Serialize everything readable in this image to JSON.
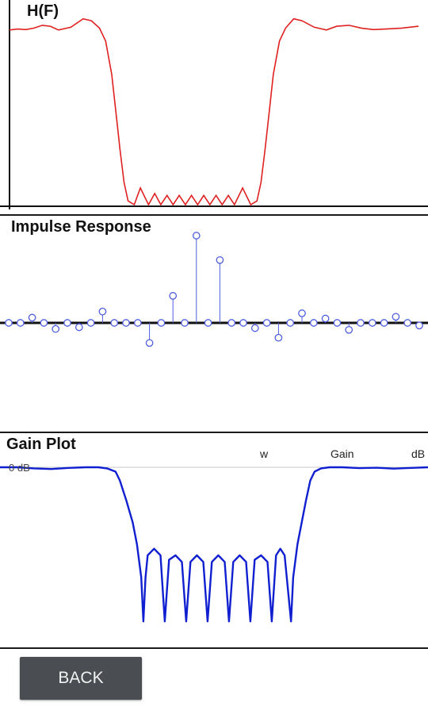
{
  "colors": {
    "hf_line": "#e02020",
    "impulse": "#4f5fe0",
    "gain_line": "#1020d0",
    "axis": "#111111"
  },
  "hf_plot": {
    "title": "H(F)",
    "chart_data": {
      "type": "line",
      "title": "H(F)",
      "series": [
        {
          "color": "#e02020",
          "points": [
            [
              0.0,
              0.94
            ],
            [
              0.02,
              0.945
            ],
            [
              0.04,
              0.942
            ],
            [
              0.06,
              0.95
            ],
            [
              0.08,
              0.965
            ],
            [
              0.1,
              0.96
            ],
            [
              0.12,
              0.94
            ],
            [
              0.15,
              0.955
            ],
            [
              0.18,
              1.0
            ],
            [
              0.2,
              0.99
            ],
            [
              0.22,
              0.95
            ],
            [
              0.235,
              0.88
            ],
            [
              0.25,
              0.7
            ],
            [
              0.26,
              0.5
            ],
            [
              0.27,
              0.3
            ],
            [
              0.28,
              0.12
            ],
            [
              0.29,
              0.02
            ],
            [
              0.305,
              0.0
            ],
            [
              0.32,
              0.09
            ],
            [
              0.34,
              0.0
            ],
            [
              0.355,
              0.06
            ],
            [
              0.37,
              0.0
            ],
            [
              0.385,
              0.05
            ],
            [
              0.4,
              0.0
            ],
            [
              0.415,
              0.05
            ],
            [
              0.43,
              0.0
            ],
            [
              0.445,
              0.05
            ],
            [
              0.46,
              0.0
            ],
            [
              0.475,
              0.05
            ],
            [
              0.49,
              0.0
            ],
            [
              0.505,
              0.05
            ],
            [
              0.52,
              0.0
            ],
            [
              0.535,
              0.05
            ],
            [
              0.55,
              0.0
            ],
            [
              0.57,
              0.09
            ],
            [
              0.59,
              0.0
            ],
            [
              0.605,
              0.02
            ],
            [
              0.615,
              0.12
            ],
            [
              0.625,
              0.3
            ],
            [
              0.635,
              0.5
            ],
            [
              0.645,
              0.7
            ],
            [
              0.66,
              0.88
            ],
            [
              0.675,
              0.95
            ],
            [
              0.695,
              1.0
            ],
            [
              0.715,
              0.99
            ],
            [
              0.745,
              0.955
            ],
            [
              0.775,
              0.94
            ],
            [
              0.8,
              0.96
            ],
            [
              0.83,
              0.965
            ],
            [
              0.86,
              0.95
            ],
            [
              0.89,
              0.942
            ],
            [
              0.92,
              0.945
            ],
            [
              0.96,
              0.95
            ],
            [
              1.0,
              0.96
            ]
          ]
        }
      ],
      "xlim": [
        0,
        1
      ],
      "ylim": [
        0,
        1.05
      ]
    }
  },
  "impulse_plot": {
    "title": "Impulse Response",
    "chart_data": {
      "type": "scatter",
      "title": "Impulse Response",
      "series": [
        {
          "color": "#4f5fe0",
          "values": [
            0.0,
            0.0,
            0.06,
            0.0,
            -0.07,
            0.0,
            -0.05,
            0.0,
            0.13,
            0.0,
            0.0,
            0.0,
            -0.23,
            0.0,
            0.31,
            0.0,
            1.0,
            0.0,
            0.72,
            0.0,
            0.0,
            -0.06,
            0.0,
            -0.17,
            0.0,
            0.11,
            0.0,
            0.05,
            0.0,
            -0.08,
            0.0,
            0.0,
            0.0,
            0.07,
            0.0,
            -0.03
          ]
        }
      ],
      "ylim": [
        -1,
        1
      ]
    }
  },
  "gain_plot": {
    "title": "Gain Plot",
    "col_w": "w",
    "col_gain": "Gain",
    "col_db": "dB",
    "zero_label": "0 dB",
    "chart_data": {
      "type": "line",
      "title": "Gain Plot",
      "series": [
        {
          "color": "#1020d0",
          "points": [
            [
              0.0,
              0.0
            ],
            [
              0.04,
              0.0
            ],
            [
              0.08,
              -0.5
            ],
            [
              0.12,
              -0.8
            ],
            [
              0.16,
              -0.3
            ],
            [
              0.2,
              0.0
            ],
            [
              0.23,
              0.0
            ],
            [
              0.25,
              -0.5
            ],
            [
              0.27,
              -2
            ],
            [
              0.28,
              -6
            ],
            [
              0.295,
              -15
            ],
            [
              0.31,
              -25
            ],
            [
              0.32,
              -35
            ],
            [
              0.33,
              -50
            ],
            [
              0.335,
              -70
            ],
            [
              0.34,
              -50
            ],
            [
              0.345,
              -40
            ],
            [
              0.36,
              -37
            ],
            [
              0.375,
              -40
            ],
            [
              0.385,
              -70
            ],
            [
              0.395,
              -42
            ],
            [
              0.41,
              -40
            ],
            [
              0.425,
              -43
            ],
            [
              0.435,
              -70
            ],
            [
              0.445,
              -43
            ],
            [
              0.46,
              -40
            ],
            [
              0.475,
              -43
            ],
            [
              0.485,
              -70
            ],
            [
              0.495,
              -43
            ],
            [
              0.51,
              -40
            ],
            [
              0.525,
              -43
            ],
            [
              0.535,
              -70
            ],
            [
              0.545,
              -43
            ],
            [
              0.56,
              -40
            ],
            [
              0.575,
              -43
            ],
            [
              0.585,
              -70
            ],
            [
              0.595,
              -42
            ],
            [
              0.61,
              -40
            ],
            [
              0.625,
              -43
            ],
            [
              0.635,
              -70
            ],
            [
              0.645,
              -40
            ],
            [
              0.655,
              -37
            ],
            [
              0.665,
              -40
            ],
            [
              0.67,
              -50
            ],
            [
              0.68,
              -70
            ],
            [
              0.685,
              -50
            ],
            [
              0.695,
              -35
            ],
            [
              0.705,
              -25
            ],
            [
              0.715,
              -15
            ],
            [
              0.725,
              -6
            ],
            [
              0.735,
              -2
            ],
            [
              0.75,
              -0.5
            ],
            [
              0.77,
              0.0
            ],
            [
              0.8,
              0.0
            ],
            [
              0.84,
              -0.4
            ],
            [
              0.88,
              -0.2
            ],
            [
              0.92,
              -0.6
            ],
            [
              0.96,
              -0.3
            ],
            [
              1.0,
              0.0
            ]
          ]
        }
      ],
      "xlim": [
        0,
        1
      ],
      "ylim": [
        -80,
        0
      ]
    }
  },
  "footer": {
    "back_label": "BACK"
  }
}
